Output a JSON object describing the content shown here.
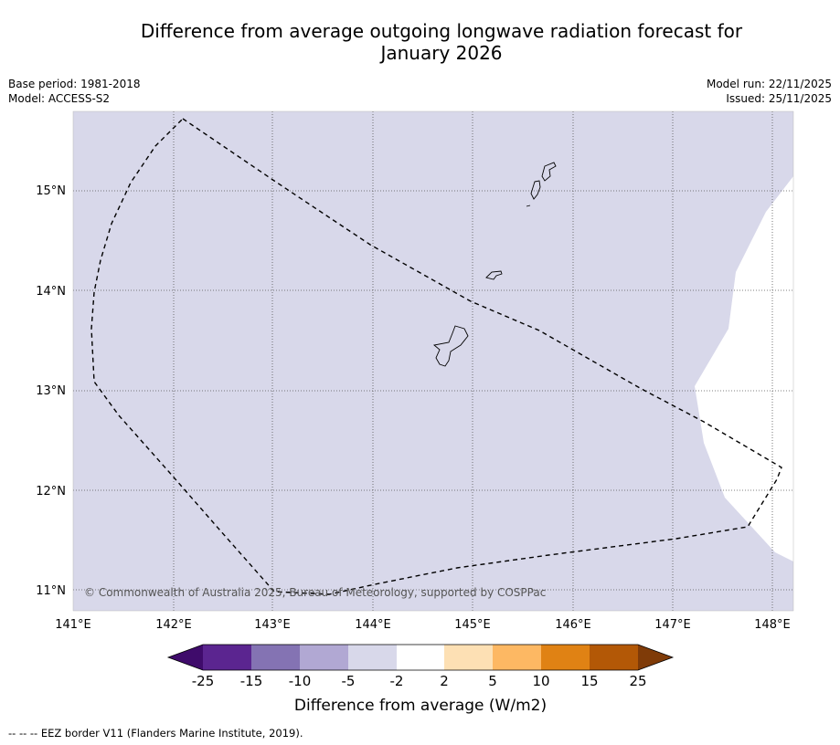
{
  "title_line1": "Difference from average outgoing longwave radiation forecast for",
  "title_line2": "January 2026",
  "base_period": "Base period: 1981-2018",
  "model": "Model: ACCESS-S2",
  "model_run": "Model run: 22/11/2025",
  "issued": "Issued: 25/11/2025",
  "copyright": "© Commonwealth of Australia 2025, Bureau of Meteorology, supported by COSPPac",
  "lon_labels": [
    "141°E",
    "142°E",
    "143°E",
    "144°E",
    "145°E",
    "146°E",
    "147°E",
    "148°E"
  ],
  "lat_labels": [
    "15°N",
    "14°N",
    "13°N",
    "12°N",
    "11°N"
  ],
  "colorbar": {
    "label": "Difference from average (W/m2)",
    "ticks": [
      "-25",
      "-15",
      "-10",
      "-5",
      "-2",
      "2",
      "5",
      "10",
      "15",
      "25"
    ],
    "colors": [
      "#3f0b6b",
      "#5b2590",
      "#8473b3",
      "#b1a8d3",
      "#d8d8ea",
      "#ffffff",
      "#fde0b4",
      "#fdb863",
      "#e08214",
      "#b35806",
      "#7f3b08"
    ]
  },
  "colors": {
    "field": "#d8d8ea",
    "neutral": "#ffffff",
    "eez_line": "#000000"
  },
  "legend_note": "--  --  -- EEZ border V11 (Flanders Marine Institute, 2019)."
}
